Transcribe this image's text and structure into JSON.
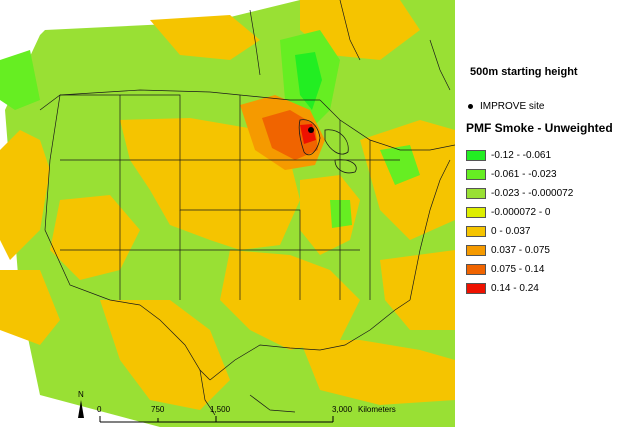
{
  "legend": {
    "heading": "500m starting height",
    "site_label": "IMPROVE site",
    "title": "PMF Smoke - Unweighted",
    "classes": [
      {
        "label": "-0.12 - -0.061",
        "color": "#22ee22"
      },
      {
        "label": "-0.061 - -0.023",
        "color": "#66ee22"
      },
      {
        "label": "-0.023 - -0.000072",
        "color": "#99e034"
      },
      {
        "label": "-0.000072 - 0",
        "color": "#ddee00"
      },
      {
        "label": "0 - 0.037",
        "color": "#f5c400"
      },
      {
        "label": "0.037 - 0.075",
        "color": "#f59a00"
      },
      {
        "label": "0.075 - 0.14",
        "color": "#f06400"
      },
      {
        "label": "0.14 - 0.24",
        "color": "#ee1100"
      }
    ]
  },
  "scale_bar": {
    "ticks": [
      "0",
      "750",
      "1,500",
      "3,000"
    ],
    "unit": "Kilometers",
    "north_label": "N"
  },
  "colors": {
    "background_green": "#99e034",
    "positive_low": "#f5c400",
    "site_dot": "#000000"
  }
}
